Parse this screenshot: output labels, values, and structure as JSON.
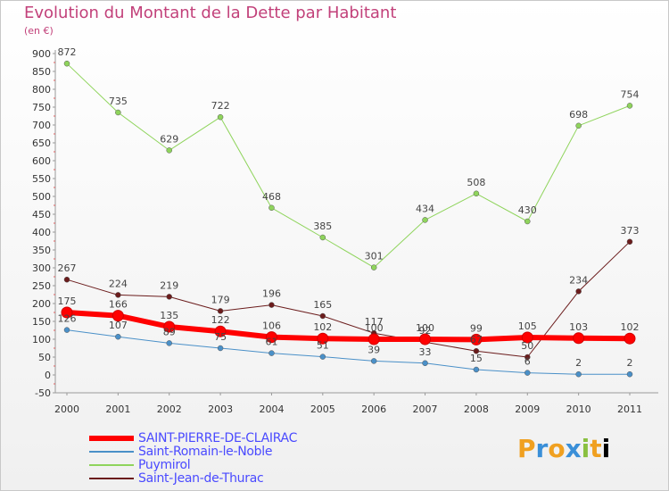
{
  "header": {
    "title": "Evolution du Montant de la Dette par Habitant",
    "subtitle": "(en €)"
  },
  "brand": "Proxiti",
  "chart_data": {
    "type": "line",
    "title": "Evolution du Montant de la Dette par Habitant",
    "ylabel": "(en €)",
    "categories": [
      "2000",
      "2001",
      "2002",
      "2003",
      "2004",
      "2005",
      "2006",
      "2007",
      "2008",
      "2009",
      "2010",
      "2011"
    ],
    "ylim": [
      -50,
      900
    ],
    "yticks": [
      -50,
      0,
      50,
      100,
      150,
      200,
      250,
      300,
      350,
      400,
      450,
      500,
      550,
      600,
      650,
      700,
      750,
      800,
      850,
      900
    ],
    "grid": false,
    "legend_position": "bottom-left",
    "series": [
      {
        "name": "Puymirol",
        "color": "#8fd45c",
        "width": 1,
        "values": [
          872,
          735,
          629,
          722,
          468,
          385,
          301,
          434,
          508,
          430,
          698,
          754
        ]
      },
      {
        "name": "Saint-Jean-de-Thurac",
        "color": "#6b1c1c",
        "width": 1,
        "values": [
          267,
          224,
          219,
          179,
          196,
          165,
          117,
          92,
          67,
          50,
          234,
          373
        ]
      },
      {
        "name": "Saint-Romain-le-Noble",
        "color": "#4a90c8",
        "width": 1,
        "values": [
          126,
          107,
          89,
          75,
          61,
          51,
          39,
          33,
          15,
          6,
          2,
          2
        ]
      },
      {
        "name": "SAINT-PIERRE-DE-CLAIRAC",
        "color": "#ff0000",
        "width": 6,
        "values": [
          175,
          166,
          135,
          122,
          106,
          102,
          100,
          100,
          99,
          105,
          103,
          102
        ]
      }
    ]
  }
}
